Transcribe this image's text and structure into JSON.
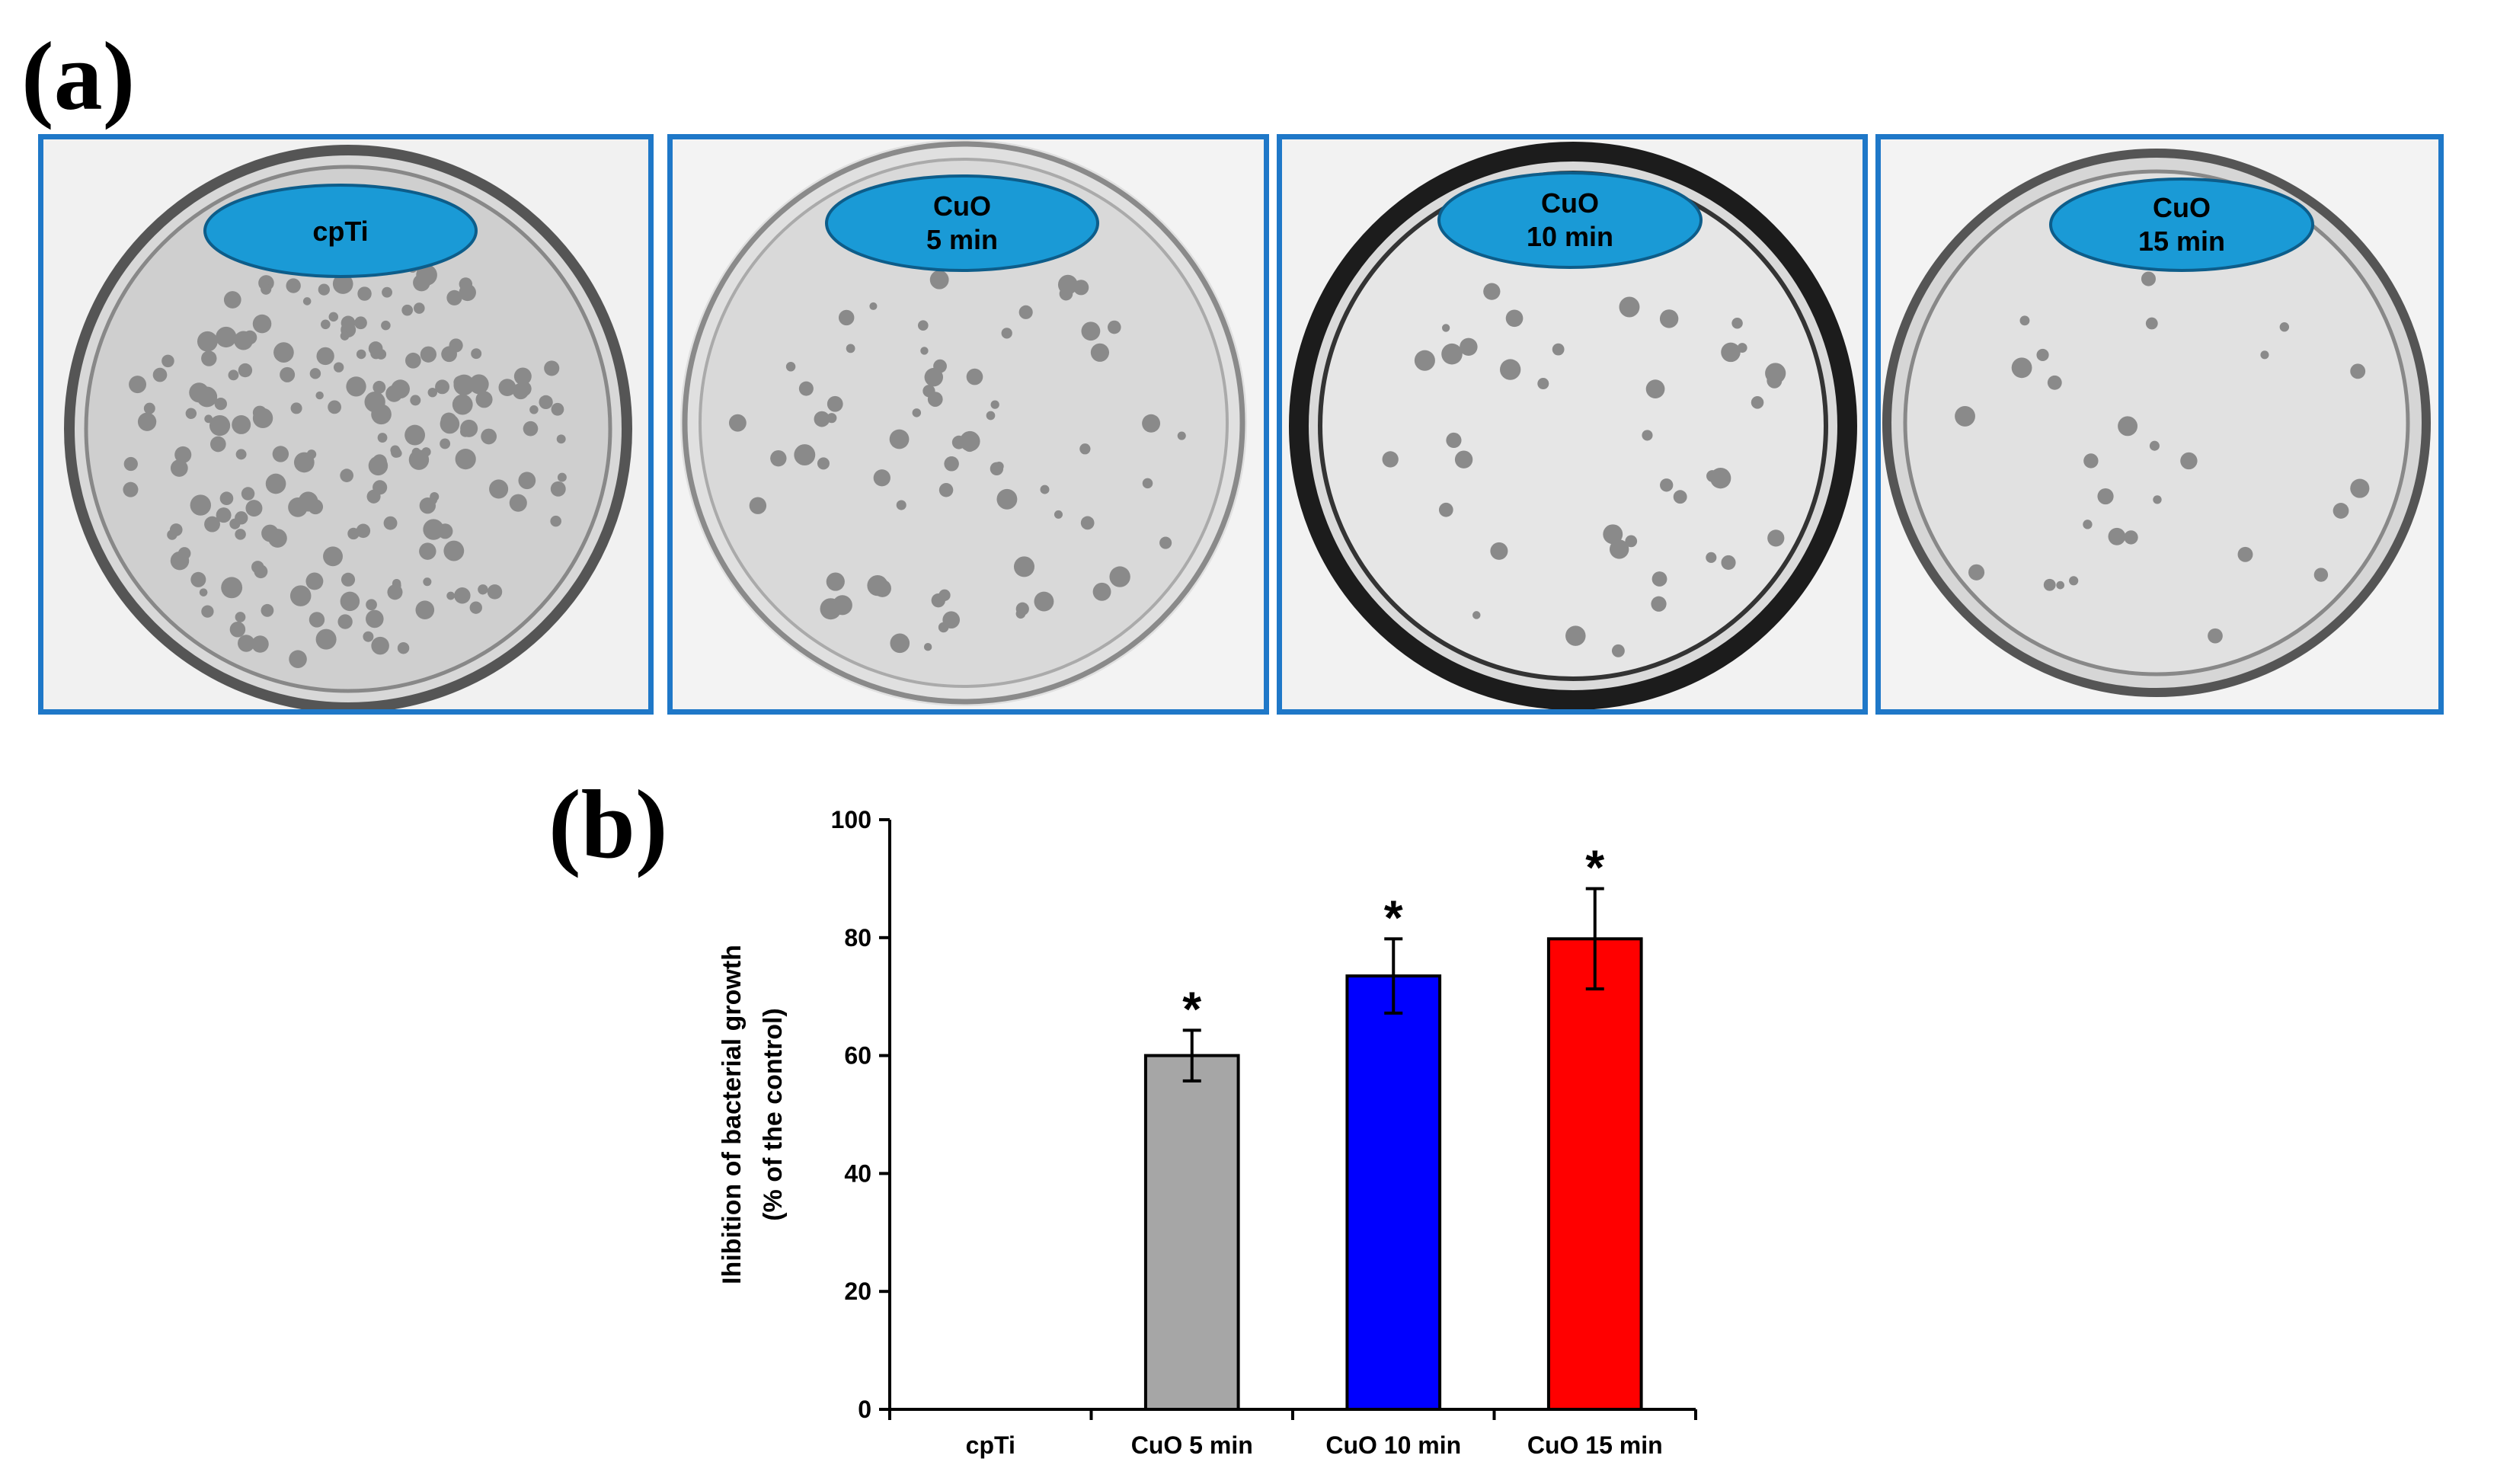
{
  "panel_a_label": "(a)",
  "panel_b_label": "(b)",
  "plates": [
    {
      "line1": "cpTi",
      "line2": ""
    },
    {
      "line1": "CuO",
      "line2": "5 min"
    },
    {
      "line1": "CuO",
      "line2": "10 min"
    },
    {
      "line1": "CuO",
      "line2": "15 min"
    }
  ],
  "colors": {
    "plate_frame": "#1f78c8",
    "ellipse_fill": "#1a9ad6",
    "bar_5min": "#a6a6a6",
    "bar_10min": "#0000ff",
    "bar_15min": "#ff0000"
  },
  "chart_data": {
    "type": "bar",
    "categories": [
      "cpTi",
      "CuO 5 min",
      "CuO 10 min",
      "CuO 15 min"
    ],
    "values": [
      0,
      60,
      73.5,
      79.8
    ],
    "errors": [
      0,
      4.3,
      6.3,
      8.5
    ],
    "significance": [
      "",
      "*",
      "*",
      "*"
    ],
    "ylabel_line1": "Ihibition of bacterial growth",
    "ylabel_line2": "(% of the control)",
    "ylim": [
      0,
      100
    ],
    "yticks": [
      0,
      20,
      40,
      60,
      80,
      100
    ]
  }
}
